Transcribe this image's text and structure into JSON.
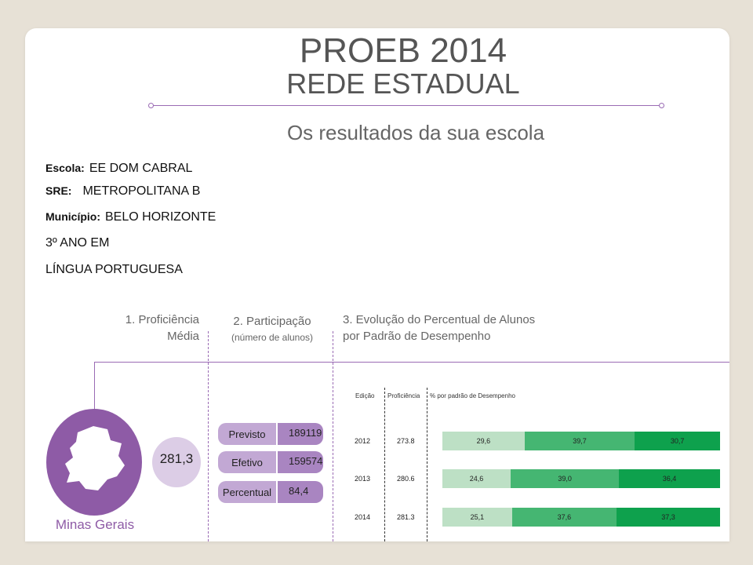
{
  "header": {
    "title": "PROEB 2014",
    "subtitle": "REDE ESTADUAL",
    "section_title": "Os resultados da sua escola"
  },
  "school": {
    "escola_label": "Escola:",
    "escola": "EE DOM CABRAL",
    "sre_label": "SRE:",
    "sre": "METROPOLITANA B",
    "municipio_label": "Município:",
    "municipio": "BELO HORIZONTE",
    "serie": "3º ANO EM",
    "disciplina": "LÍNGUA PORTUGUESA"
  },
  "sections": {
    "s1_line1": "1. Proficiência",
    "s1_line2": "Média",
    "s2_line1": "2. Participação",
    "s2_line2": "(número de alunos)",
    "s3_line1": "3. Evolução do Percentual de Alunos",
    "s3_line2": "por Padrão de Desempenho"
  },
  "state": {
    "name": "Minas Gerais",
    "proficiencia": "281,3"
  },
  "participacao": [
    {
      "label": "Previsto",
      "value": "189119"
    },
    {
      "label": "Efetivo",
      "value": "159574"
    },
    {
      "label": "Percentual",
      "value": "84,4"
    }
  ],
  "table_headers": {
    "edicao": "Edição",
    "proficiencia": "Proficiência",
    "padrao": "% por padrão de Desempenho"
  },
  "colors": {
    "accent": "#8e5ba6",
    "seg_light": "#bde0c5",
    "seg_mid": "#45b672",
    "seg_dark": "#0ea14d"
  },
  "chart_data": {
    "type": "bar",
    "stacked": true,
    "orientation": "horizontal",
    "categories": [
      "2012",
      "2013",
      "2014"
    ],
    "proficiencia": [
      "273.8",
      "280.6",
      "281.3"
    ],
    "series": [
      {
        "values": [
          29.6,
          24.6,
          25.1
        ],
        "labels": [
          "29,6",
          "24,6",
          "25,1"
        ],
        "color": "#bde0c5"
      },
      {
        "values": [
          39.7,
          39.0,
          37.6
        ],
        "labels": [
          "39,7",
          "39,0",
          "37,6"
        ],
        "color": "#45b672"
      },
      {
        "values": [
          30.7,
          36.4,
          37.3
        ],
        "labels": [
          "30,7",
          "36,4",
          "37,3"
        ],
        "color": "#0ea14d"
      }
    ]
  }
}
